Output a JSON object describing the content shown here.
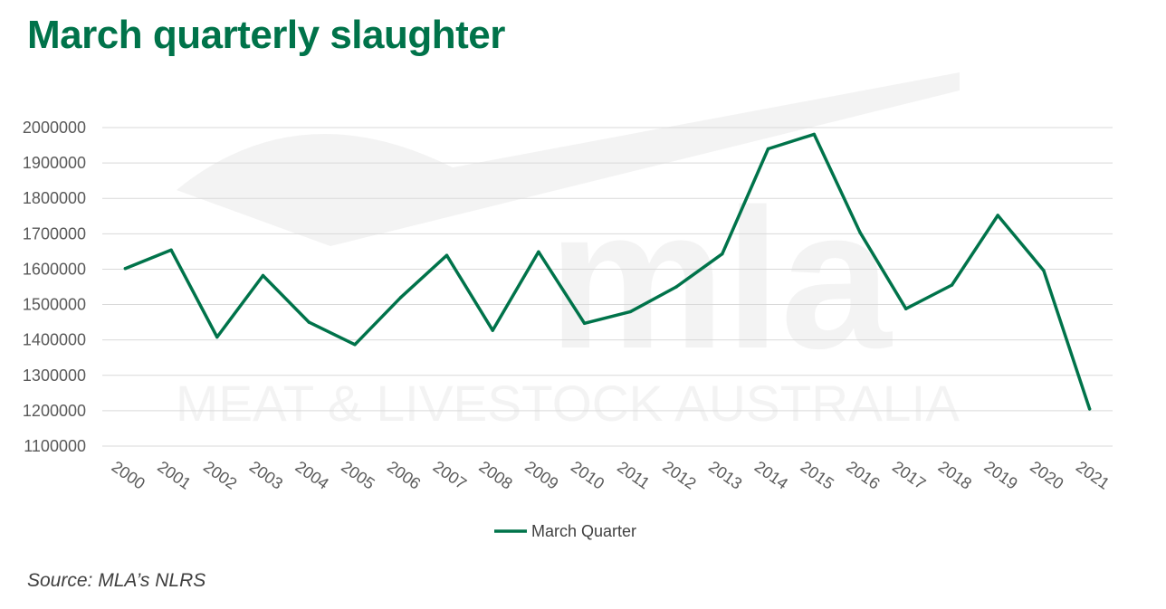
{
  "title": "March quarterly slaughter",
  "source": "Source: MLA’s NLRS",
  "watermark": {
    "logo": "mla",
    "tagline": "MEAT & LIVESTOCK AUSTRALIA"
  },
  "colors": {
    "title": "#00734a",
    "line": "#00734a",
    "grid": "#d9d9d9"
  },
  "chart_data": {
    "type": "line",
    "title": "",
    "xlabel": "",
    "ylabel": "",
    "categories": [
      "2000",
      "2001",
      "2002",
      "2003",
      "2004",
      "2005",
      "2006",
      "2007",
      "2008",
      "2009",
      "2010",
      "2011",
      "2012",
      "2013",
      "2014",
      "2015",
      "2016",
      "2017",
      "2018",
      "2019",
      "2020",
      "2021"
    ],
    "series": [
      {
        "name": "March Quarter",
        "values": [
          1602000,
          1654000,
          1408000,
          1582000,
          1450000,
          1387000,
          1520000,
          1639000,
          1427000,
          1649000,
          1447000,
          1480000,
          1550000,
          1643000,
          1940000,
          1981000,
          1704000,
          1488000,
          1555000,
          1752000,
          1596000,
          1205000
        ]
      }
    ],
    "ylim": [
      1100000,
      2000000
    ],
    "yticks": [
      "2000000",
      "1900000",
      "1800000",
      "1700000",
      "1600000",
      "1500000",
      "1400000",
      "1300000",
      "1200000",
      "1100000"
    ],
    "grid": true,
    "legend": "bottom"
  }
}
